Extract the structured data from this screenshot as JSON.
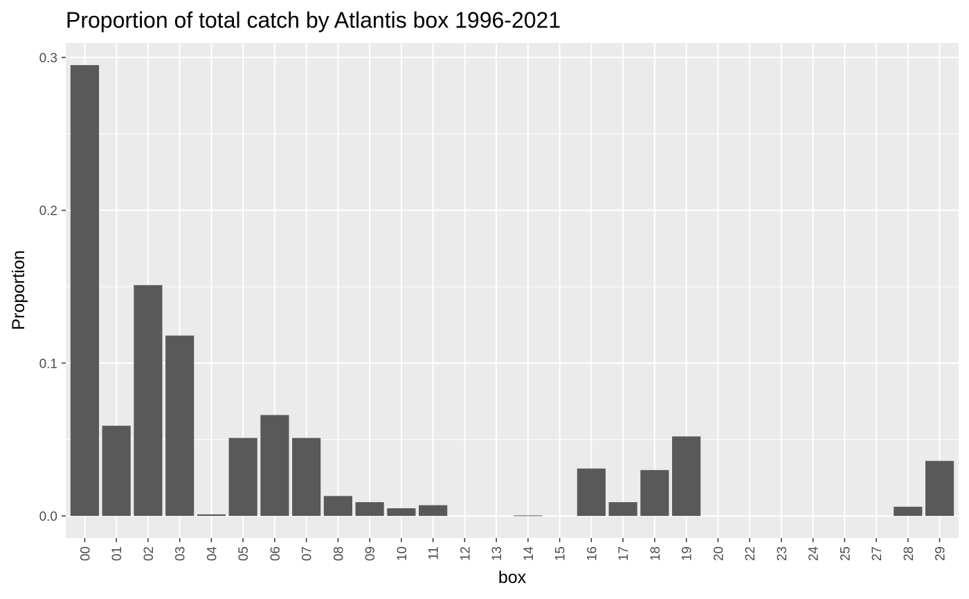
{
  "chart_data": {
    "type": "bar",
    "title": "Proportion of total catch by Atlantis box 1996-2021",
    "xlabel": "box",
    "ylabel": "Proportion",
    "categories": [
      "00",
      "01",
      "02",
      "03",
      "04",
      "05",
      "06",
      "07",
      "08",
      "09",
      "10",
      "11",
      "12",
      "13",
      "14",
      "15",
      "16",
      "17",
      "18",
      "19",
      "20",
      "22",
      "23",
      "24",
      "25",
      "27",
      "28",
      "29"
    ],
    "values": [
      0.295,
      0.059,
      0.151,
      0.118,
      0.001,
      0.051,
      0.066,
      0.051,
      0.013,
      0.009,
      0.005,
      0.007,
      0.0,
      0.0,
      0.0003,
      0.0,
      0.031,
      0.009,
      0.03,
      0.052,
      0.0,
      0.0,
      0.0,
      0.0,
      0.0,
      0.0,
      0.006,
      0.036
    ],
    "yticks": [
      "0.0",
      "0.1",
      "0.2",
      "0.3"
    ],
    "ylim": [
      -0.0145,
      0.3095
    ],
    "grid": true,
    "legend": "none",
    "colors": {
      "panel": "#ebebeb",
      "bar": "#595959",
      "grid": "#ffffff",
      "tick_text": "#4d4d4d",
      "axis_tick": "#333333"
    }
  }
}
